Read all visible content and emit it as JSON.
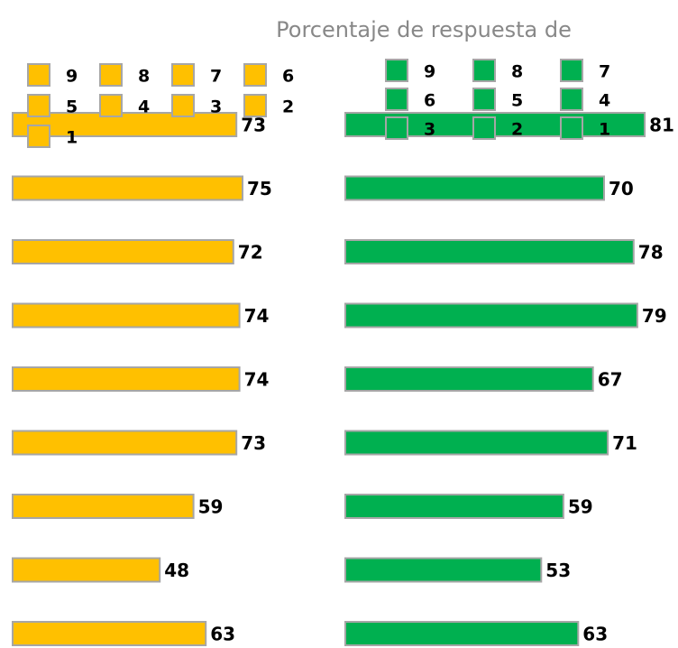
{
  "title": "Porcentaje de respuesta de",
  "chart_data": [
    {
      "type": "bar",
      "orientation": "horizontal",
      "color": "#FFC000",
      "categories": [
        "9",
        "8",
        "7",
        "6",
        "5",
        "4",
        "3",
        "2",
        "1"
      ],
      "values": [
        73,
        75,
        72,
        74,
        74,
        73,
        59,
        48,
        63
      ],
      "xlim": [
        0,
        100
      ]
    },
    {
      "type": "bar",
      "orientation": "horizontal",
      "color": "#00B050",
      "categories": [
        "9",
        "8",
        "7",
        "6",
        "5",
        "4",
        "3",
        "2",
        "1"
      ],
      "values": [
        81,
        70,
        78,
        79,
        67,
        71,
        59,
        53,
        63
      ],
      "xlim": [
        0,
        100
      ]
    }
  ]
}
